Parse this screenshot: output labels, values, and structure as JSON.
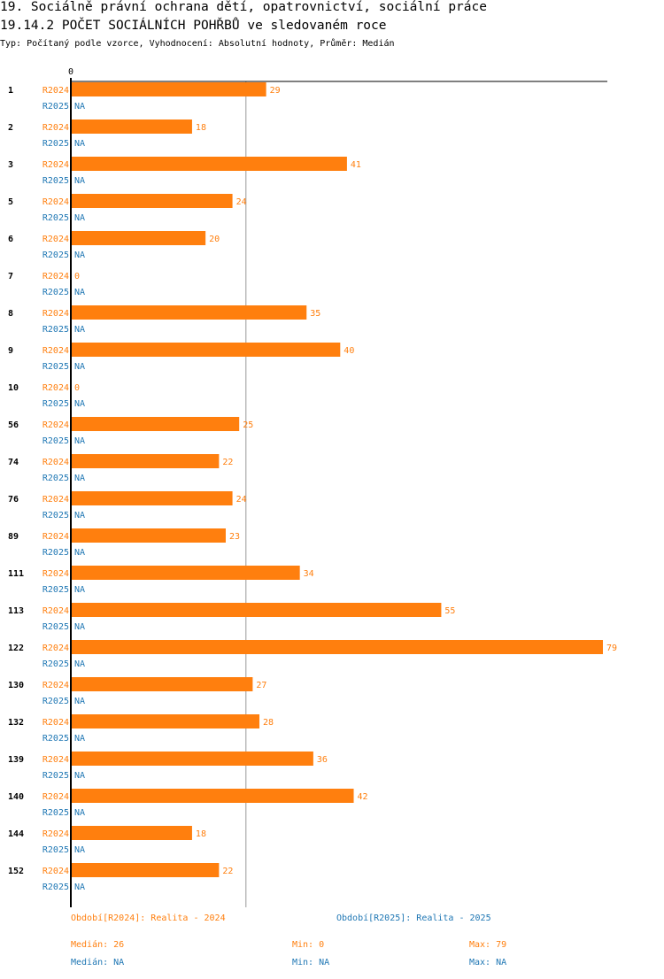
{
  "title_line1": "19. Sociálně právní ochrana dětí, opatrovnictví, sociální práce",
  "title_line2": "19.14.2 POČET SOCIÁLNÍCH POHŘBŮ ve sledovaném roce",
  "subtitle": "Typ: Počítaný podle vzorce, Vyhodnocení: Absolutní hodnoty, Průměr: Medián",
  "colors": {
    "r2024": "#ff7f0e",
    "r2025": "#1f77b4",
    "median_line": "#d9914a"
  },
  "chart_data": {
    "type": "bar",
    "orientation": "horizontal",
    "x_tick_label": "0",
    "xlim": [
      0,
      79
    ],
    "categories": [
      "1",
      "2",
      "3",
      "5",
      "6",
      "7",
      "8",
      "9",
      "10",
      "56",
      "74",
      "76",
      "89",
      "111",
      "113",
      "122",
      "130",
      "132",
      "139",
      "140",
      "144",
      "152"
    ],
    "series": [
      {
        "name": "R2024",
        "values": [
          29,
          18,
          41,
          24,
          20,
          0,
          35,
          40,
          0,
          25,
          22,
          24,
          23,
          34,
          55,
          79,
          27,
          28,
          36,
          42,
          18,
          22
        ]
      },
      {
        "name": "R2025",
        "values": [
          "NA",
          "NA",
          "NA",
          "NA",
          "NA",
          "NA",
          "NA",
          "NA",
          "NA",
          "NA",
          "NA",
          "NA",
          "NA",
          "NA",
          "NA",
          "NA",
          "NA",
          "NA",
          "NA",
          "NA",
          "NA",
          "NA"
        ]
      }
    ],
    "median_line": 26
  },
  "legend": {
    "r2024": "Období[R2024]: Realita - 2024",
    "r2025": "Období[R2025]: Realita - 2025",
    "r2024_median": "Medián: 26",
    "r2024_min": "Min: 0",
    "r2024_max": "Max: 79",
    "r2025_median": "Medián: NA",
    "r2025_min": "Min: NA",
    "r2025_max": "Max: NA"
  }
}
